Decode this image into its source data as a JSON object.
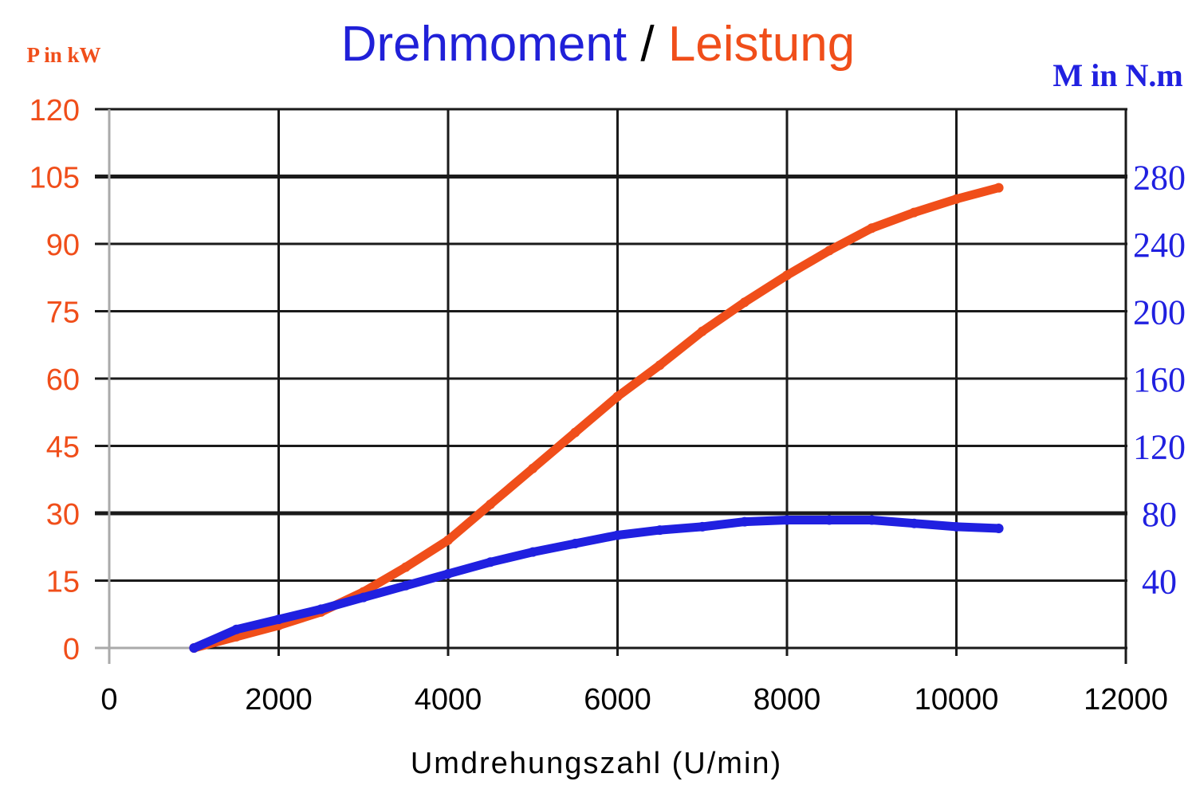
{
  "chart_data": {
    "type": "line",
    "title": {
      "part1": "Drehmoment",
      "separator": " / ",
      "part2": "Leistung"
    },
    "xlabel": "Umdrehungszahl (U/min)",
    "ylabel_left": "P in kW",
    "ylabel_right": "M in N.m",
    "xlim": [
      0,
      12000
    ],
    "ylim_left": [
      0,
      120
    ],
    "ylim_right": [
      0,
      320
    ],
    "xticks": [
      "0",
      "2000",
      "4000",
      "6000",
      "8000",
      "10000",
      "12000"
    ],
    "yticks_left": [
      "0",
      "15",
      "30",
      "45",
      "60",
      "75",
      "90",
      "105",
      "120"
    ],
    "yticks_right": [
      "40",
      "80",
      "120",
      "160",
      "200",
      "240",
      "280"
    ],
    "grid": true,
    "colors": {
      "power": "#f04e1a",
      "torque": "#2020e0",
      "title_torque": "#2020d8",
      "title_power": "#f04e1a",
      "grid": "#1a1a1a"
    },
    "series": [
      {
        "key": "power",
        "axis": "left",
        "x": [
          1000,
          1500,
          2000,
          2500,
          3000,
          3500,
          4000,
          4500,
          5000,
          5500,
          6000,
          6500,
          7000,
          7500,
          8000,
          8500,
          9000,
          9500,
          10000,
          10500
        ],
        "y": [
          0,
          2.5,
          5,
          8,
          12.5,
          18,
          24,
          32,
          40,
          48,
          56,
          63,
          70.5,
          77,
          83,
          88.5,
          93.5,
          97,
          100,
          102.5
        ]
      },
      {
        "key": "torque",
        "axis": "right",
        "x": [
          1000,
          1500,
          2000,
          2500,
          3000,
          3500,
          4000,
          4500,
          5000,
          5500,
          6000,
          6500,
          7000,
          7500,
          8000,
          8500,
          9000,
          9500,
          10000,
          10500
        ],
        "y": [
          0,
          11,
          17,
          23,
          30,
          37,
          44,
          51,
          57,
          62,
          67,
          70,
          72,
          75,
          76,
          76,
          76,
          74,
          72,
          71
        ]
      }
    ]
  }
}
